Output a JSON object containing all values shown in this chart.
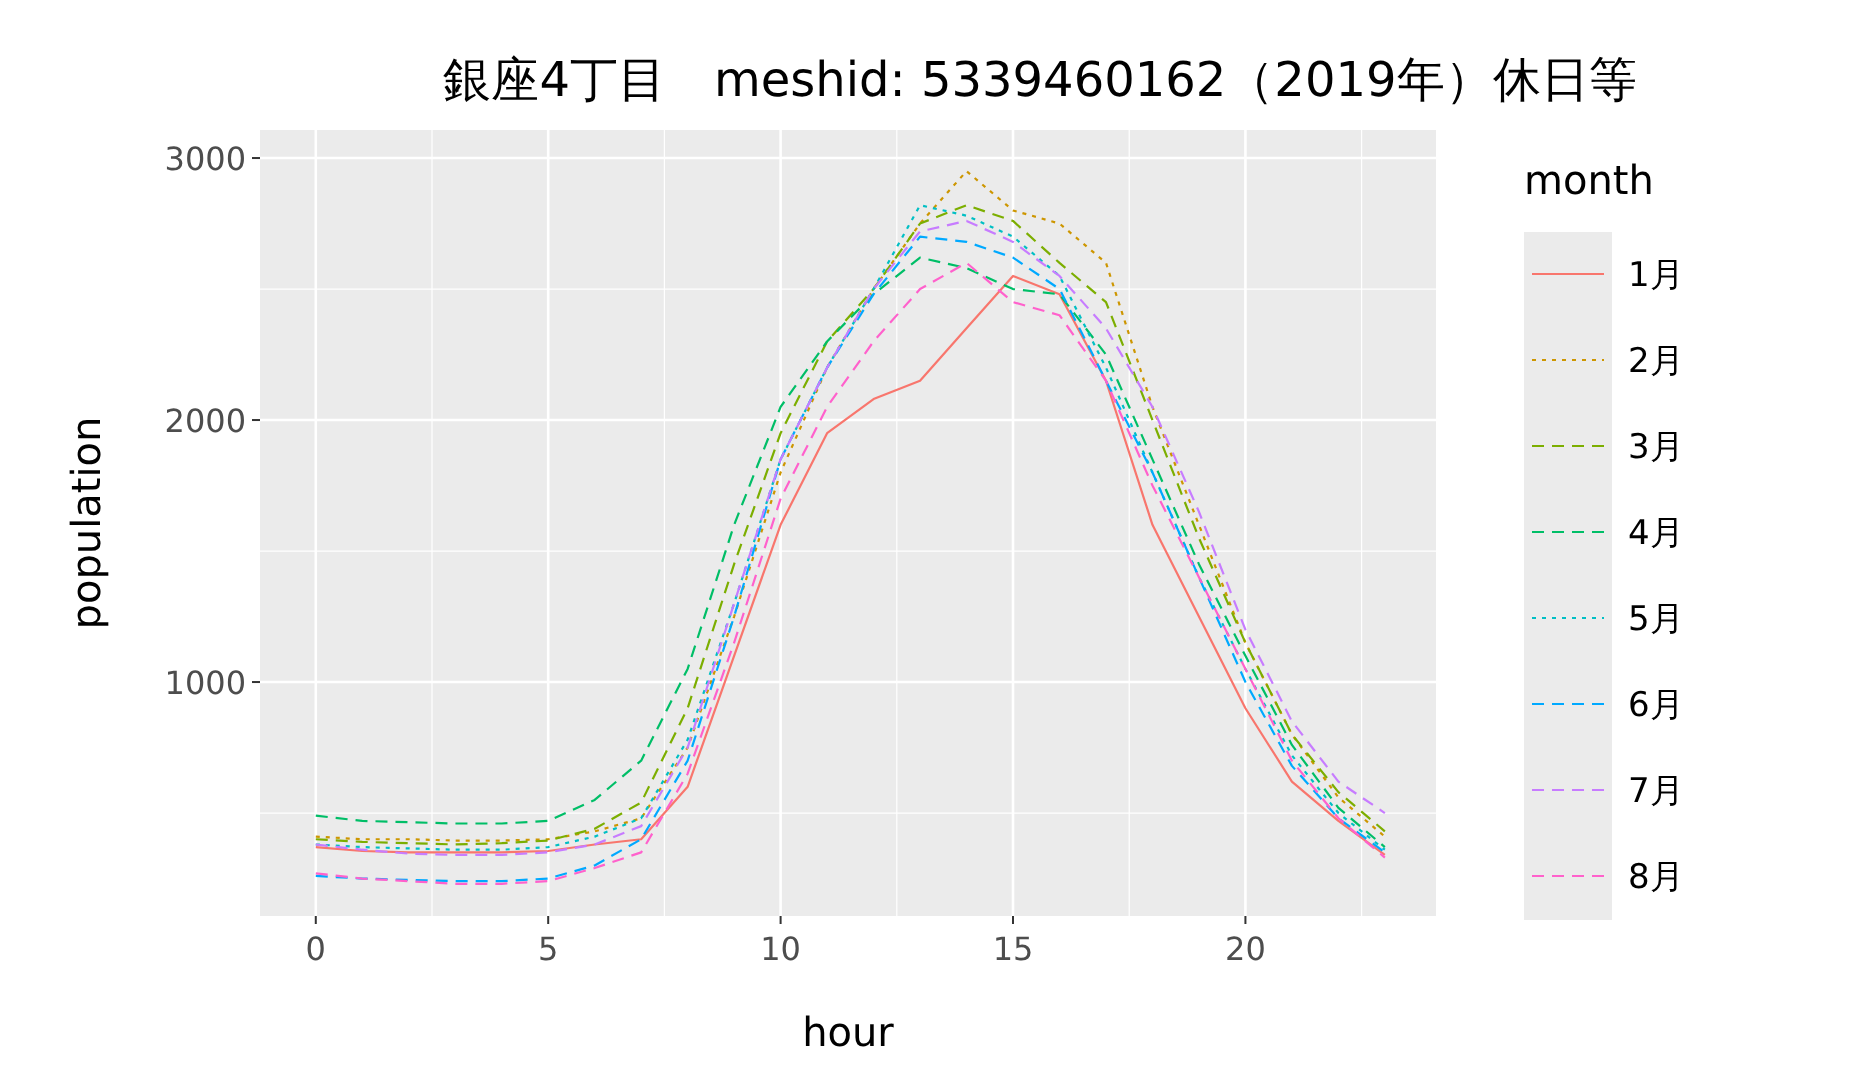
{
  "chart_data": {
    "type": "line",
    "title": "銀座4丁目　meshid: 5339460162（2019年）休日等",
    "xlabel": "hour",
    "ylabel": "population",
    "legend_title": "month",
    "x": [
      0,
      1,
      2,
      3,
      4,
      5,
      6,
      7,
      8,
      9,
      10,
      11,
      12,
      13,
      14,
      15,
      16,
      17,
      18,
      19,
      20,
      21,
      22,
      23
    ],
    "xlim": [
      -1.2,
      24.1
    ],
    "xticks": [
      0,
      5,
      10,
      15,
      20
    ],
    "ylim": [
      107,
      3107
    ],
    "yticks": [
      1000,
      2000,
      3000
    ],
    "grid": true,
    "legend": "right",
    "series": [
      {
        "name": "1月",
        "color": "#F8766D",
        "line_style": "solid",
        "values": [
          370,
          355,
          350,
          350,
          350,
          355,
          380,
          400,
          600,
          1100,
          1600,
          1950,
          2080,
          2150,
          2350,
          2550,
          2480,
          2150,
          1600,
          1250,
          900,
          620,
          470,
          340
        ]
      },
      {
        "name": "2月",
        "color": "#CD9600",
        "line_style": "dotted",
        "values": [
          410,
          400,
          400,
          395,
          395,
          400,
          430,
          480,
          750,
          1250,
          1800,
          2200,
          2500,
          2750,
          2950,
          2800,
          2750,
          2600,
          2050,
          1600,
          1150,
          800,
          560,
          410
        ]
      },
      {
        "name": "3月",
        "color": "#7CAE00",
        "line_style": "dashed",
        "values": [
          400,
          390,
          385,
          380,
          385,
          395,
          440,
          540,
          900,
          1450,
          1950,
          2300,
          2500,
          2750,
          2820,
          2760,
          2600,
          2450,
          2000,
          1550,
          1150,
          800,
          580,
          430
        ]
      },
      {
        "name": "4月",
        "color": "#00BE67",
        "line_style": "dashed",
        "values": [
          490,
          470,
          465,
          460,
          460,
          470,
          550,
          700,
          1050,
          1600,
          2050,
          2300,
          2480,
          2620,
          2580,
          2500,
          2480,
          2250,
          1850,
          1450,
          1100,
          760,
          520,
          370
        ]
      },
      {
        "name": "5月",
        "color": "#00BFC4",
        "line_style": "dotted",
        "values": [
          380,
          370,
          365,
          360,
          360,
          370,
          410,
          480,
          780,
          1300,
          1850,
          2200,
          2500,
          2820,
          2780,
          2700,
          2550,
          2200,
          1800,
          1400,
          1050,
          720,
          500,
          360
        ]
      },
      {
        "name": "6月",
        "color": "#00A9FF",
        "line_style": "dashed",
        "values": [
          260,
          250,
          245,
          240,
          240,
          250,
          300,
          400,
          700,
          1250,
          1850,
          2200,
          2480,
          2700,
          2680,
          2620,
          2500,
          2150,
          1800,
          1400,
          1000,
          680,
          480,
          350
        ]
      },
      {
        "name": "7月",
        "color": "#C77CFF",
        "line_style": "dashed",
        "values": [
          380,
          360,
          345,
          340,
          340,
          350,
          380,
          450,
          750,
          1300,
          1850,
          2200,
          2500,
          2720,
          2760,
          2680,
          2550,
          2350,
          2050,
          1650,
          1200,
          850,
          620,
          500
        ]
      },
      {
        "name": "8月",
        "color": "#FF61CC",
        "line_style": "dashed",
        "values": [
          270,
          250,
          240,
          230,
          230,
          240,
          290,
          350,
          650,
          1150,
          1700,
          2050,
          2300,
          2500,
          2600,
          2450,
          2400,
          2150,
          1750,
          1400,
          1050,
          700,
          480,
          330
        ]
      }
    ]
  }
}
